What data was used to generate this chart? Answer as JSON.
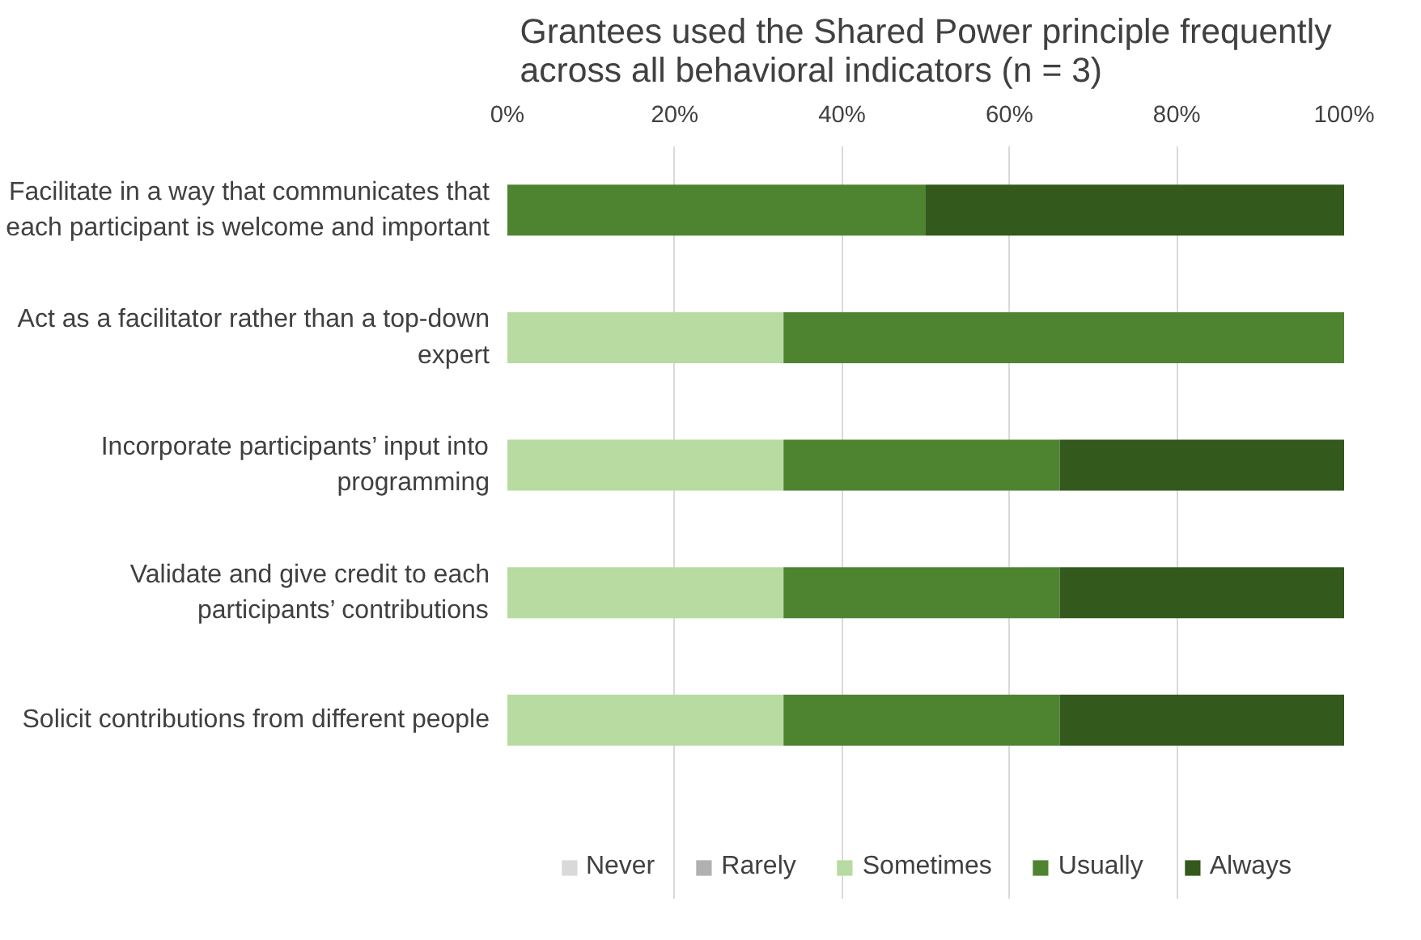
{
  "chart_data": {
    "type": "bar",
    "orientation": "horizontal",
    "stacked": true,
    "title": "Grantees used the Shared Power principle frequently across all behavioral indicators (n = 3)",
    "categories": [
      "Facilitate in a way that communicates that each participant is welcome and important",
      "Act as a facilitator rather than a top-down expert",
      "Incorporate participants’ input into programming",
      "Validate and give credit to each participants’ contributions",
      "Solicit contributions from different people"
    ],
    "series": [
      {
        "name": "Never",
        "color": "#d9d9d9",
        "values": [
          0,
          0,
          0,
          0,
          0
        ]
      },
      {
        "name": "Rarely",
        "color": "#b0b0b0",
        "values": [
          0,
          0,
          0,
          0,
          0
        ]
      },
      {
        "name": "Sometimes",
        "color": "#b7dba0",
        "values": [
          0,
          33,
          33,
          33,
          33
        ]
      },
      {
        "name": "Usually",
        "color": "#4e8330",
        "values": [
          50,
          67,
          33,
          33,
          33
        ]
      },
      {
        "name": "Always",
        "color": "#33591c",
        "values": [
          50,
          0,
          34,
          34,
          34
        ]
      }
    ],
    "xlim": [
      0,
      100
    ],
    "xticks": [
      {
        "value": 0,
        "label": "0%"
      },
      {
        "value": 20,
        "label": "20%"
      },
      {
        "value": 40,
        "label": "40%"
      },
      {
        "value": 60,
        "label": "60%"
      },
      {
        "value": 80,
        "label": "80%"
      },
      {
        "value": 100,
        "label": "100%"
      }
    ],
    "grid": "x",
    "legend": "bottom"
  }
}
